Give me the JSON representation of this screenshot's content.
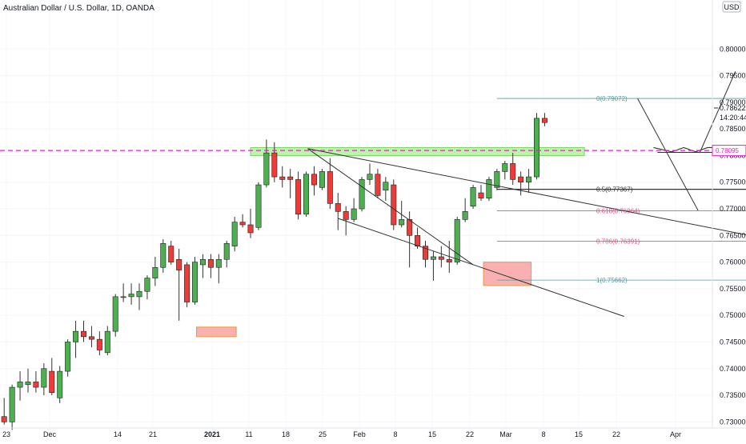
{
  "chart_data": {
    "type": "candlestick",
    "title": "Australian Dollar / U.S. Dollar, 1D, OANDA",
    "currency": "USD",
    "ylim": [
      0.7293,
      0.8041
    ],
    "y_ticks": [
      "0.80000",
      "0.79500",
      "0.79000",
      "0.78500",
      "0.78000",
      "0.77500",
      "0.77000",
      "0.76500",
      "0.76000",
      "0.75500",
      "0.75000",
      "0.74500",
      "0.74000",
      "0.73500",
      "0.73000"
    ],
    "x_ticks": [
      "23",
      "Dec",
      "14",
      "21",
      "2021",
      "11",
      "18",
      "25",
      "Feb",
      "8",
      "15",
      "22",
      "Mar",
      "8",
      "15",
      "22",
      "Apr"
    ],
    "last_price": "0.78622",
    "countdown": "14:20:44",
    "cursor_price": "0.78095",
    "colors": {
      "up": "#4caf50",
      "down": "#ef3b37",
      "wick": "#333333",
      "zone_green": "#b9f6a8",
      "zone_red": "#f8b0b0",
      "dash": "#e91ecb"
    },
    "candles": [
      {
        "o": 0.731,
        "h": 0.7345,
        "l": 0.7295,
        "c": 0.73
      },
      {
        "o": 0.73,
        "h": 0.737,
        "l": 0.7285,
        "c": 0.7365
      },
      {
        "o": 0.7365,
        "h": 0.7395,
        "l": 0.734,
        "c": 0.7375
      },
      {
        "o": 0.737,
        "h": 0.74,
        "l": 0.7355,
        "c": 0.7375
      },
      {
        "o": 0.7375,
        "h": 0.7395,
        "l": 0.7355,
        "c": 0.7365
      },
      {
        "o": 0.7365,
        "h": 0.741,
        "l": 0.735,
        "c": 0.74
      },
      {
        "o": 0.7395,
        "h": 0.742,
        "l": 0.735,
        "c": 0.7355
      },
      {
        "o": 0.7345,
        "h": 0.7405,
        "l": 0.7335,
        "c": 0.7395
      },
      {
        "o": 0.7395,
        "h": 0.7455,
        "l": 0.7385,
        "c": 0.745
      },
      {
        "o": 0.745,
        "h": 0.749,
        "l": 0.742,
        "c": 0.747
      },
      {
        "o": 0.747,
        "h": 0.749,
        "l": 0.745,
        "c": 0.746
      },
      {
        "o": 0.746,
        "h": 0.748,
        "l": 0.744,
        "c": 0.7455
      },
      {
        "o": 0.7455,
        "h": 0.747,
        "l": 0.7425,
        "c": 0.7435
      },
      {
        "o": 0.743,
        "h": 0.748,
        "l": 0.7425,
        "c": 0.747
      },
      {
        "o": 0.747,
        "h": 0.754,
        "l": 0.746,
        "c": 0.7535
      },
      {
        "o": 0.7535,
        "h": 0.756,
        "l": 0.7525,
        "c": 0.7535
      },
      {
        "o": 0.7535,
        "h": 0.756,
        "l": 0.752,
        "c": 0.754
      },
      {
        "o": 0.7535,
        "h": 0.756,
        "l": 0.751,
        "c": 0.7545
      },
      {
        "o": 0.7545,
        "h": 0.7575,
        "l": 0.753,
        "c": 0.757
      },
      {
        "o": 0.757,
        "h": 0.761,
        "l": 0.7555,
        "c": 0.759
      },
      {
        "o": 0.759,
        "h": 0.7643,
        "l": 0.758,
        "c": 0.7635
      },
      {
        "o": 0.763,
        "h": 0.764,
        "l": 0.7595,
        "c": 0.76
      },
      {
        "o": 0.7605,
        "h": 0.7625,
        "l": 0.749,
        "c": 0.7585
      },
      {
        "o": 0.7595,
        "h": 0.76,
        "l": 0.7515,
        "c": 0.7525
      },
      {
        "o": 0.7525,
        "h": 0.761,
        "l": 0.752,
        "c": 0.76
      },
      {
        "o": 0.7595,
        "h": 0.7615,
        "l": 0.757,
        "c": 0.7605
      },
      {
        "o": 0.7605,
        "h": 0.7615,
        "l": 0.757,
        "c": 0.759
      },
      {
        "o": 0.759,
        "h": 0.7615,
        "l": 0.756,
        "c": 0.7605
      },
      {
        "o": 0.7605,
        "h": 0.764,
        "l": 0.759,
        "c": 0.7635
      },
      {
        "o": 0.763,
        "h": 0.7685,
        "l": 0.762,
        "c": 0.7675
      },
      {
        "o": 0.7675,
        "h": 0.769,
        "l": 0.7665,
        "c": 0.767
      },
      {
        "o": 0.767,
        "h": 0.77,
        "l": 0.7645,
        "c": 0.7655
      },
      {
        "o": 0.7665,
        "h": 0.775,
        "l": 0.766,
        "c": 0.7745
      },
      {
        "o": 0.7745,
        "h": 0.783,
        "l": 0.774,
        "c": 0.7805
      },
      {
        "o": 0.7805,
        "h": 0.7825,
        "l": 0.775,
        "c": 0.776
      },
      {
        "o": 0.776,
        "h": 0.778,
        "l": 0.774,
        "c": 0.7755
      },
      {
        "o": 0.776,
        "h": 0.7775,
        "l": 0.772,
        "c": 0.7755
      },
      {
        "o": 0.7755,
        "h": 0.777,
        "l": 0.768,
        "c": 0.769
      },
      {
        "o": 0.769,
        "h": 0.777,
        "l": 0.7685,
        "c": 0.7765
      },
      {
        "o": 0.7765,
        "h": 0.778,
        "l": 0.7725,
        "c": 0.7745
      },
      {
        "o": 0.774,
        "h": 0.7775,
        "l": 0.7735,
        "c": 0.777
      },
      {
        "o": 0.777,
        "h": 0.7795,
        "l": 0.77,
        "c": 0.771
      },
      {
        "o": 0.771,
        "h": 0.773,
        "l": 0.766,
        "c": 0.7695
      },
      {
        "o": 0.7695,
        "h": 0.7705,
        "l": 0.765,
        "c": 0.768
      },
      {
        "o": 0.768,
        "h": 0.772,
        "l": 0.7675,
        "c": 0.77
      },
      {
        "o": 0.77,
        "h": 0.776,
        "l": 0.7695,
        "c": 0.7755
      },
      {
        "o": 0.7755,
        "h": 0.7785,
        "l": 0.7745,
        "c": 0.7765
      },
      {
        "o": 0.7765,
        "h": 0.7775,
        "l": 0.772,
        "c": 0.7725
      },
      {
        "o": 0.7735,
        "h": 0.776,
        "l": 0.7715,
        "c": 0.775
      },
      {
        "o": 0.7745,
        "h": 0.7755,
        "l": 0.766,
        "c": 0.767
      },
      {
        "o": 0.767,
        "h": 0.7715,
        "l": 0.7665,
        "c": 0.768
      },
      {
        "o": 0.768,
        "h": 0.7695,
        "l": 0.759,
        "c": 0.765
      },
      {
        "o": 0.765,
        "h": 0.7665,
        "l": 0.7625,
        "c": 0.763
      },
      {
        "o": 0.763,
        "h": 0.764,
        "l": 0.759,
        "c": 0.7605
      },
      {
        "o": 0.7605,
        "h": 0.762,
        "l": 0.7565,
        "c": 0.761
      },
      {
        "o": 0.761,
        "h": 0.763,
        "l": 0.759,
        "c": 0.7605
      },
      {
        "o": 0.7605,
        "h": 0.764,
        "l": 0.758,
        "c": 0.76
      },
      {
        "o": 0.76,
        "h": 0.7685,
        "l": 0.7595,
        "c": 0.768
      },
      {
        "o": 0.768,
        "h": 0.772,
        "l": 0.7675,
        "c": 0.7695
      },
      {
        "o": 0.7705,
        "h": 0.7745,
        "l": 0.77,
        "c": 0.774
      },
      {
        "o": 0.773,
        "h": 0.7745,
        "l": 0.7715,
        "c": 0.772
      },
      {
        "o": 0.772,
        "h": 0.776,
        "l": 0.7715,
        "c": 0.7755
      },
      {
        "o": 0.774,
        "h": 0.7775,
        "l": 0.7735,
        "c": 0.777
      },
      {
        "o": 0.777,
        "h": 0.779,
        "l": 0.7755,
        "c": 0.7785
      },
      {
        "o": 0.7785,
        "h": 0.7805,
        "l": 0.7745,
        "c": 0.7755
      },
      {
        "o": 0.776,
        "h": 0.777,
        "l": 0.7725,
        "c": 0.775
      },
      {
        "o": 0.775,
        "h": 0.7775,
        "l": 0.773,
        "c": 0.776
      },
      {
        "o": 0.776,
        "h": 0.788,
        "l": 0.7755,
        "c": 0.787
      },
      {
        "o": 0.787,
        "h": 0.788,
        "l": 0.7855,
        "c": 0.7862
      }
    ],
    "zones": [
      {
        "name": "resistance-zone-green",
        "color": "green",
        "x0": 31,
        "x1": 73,
        "y0": 0.78,
        "y1": 0.7815
      },
      {
        "name": "demand-zone-red-1",
        "color": "red",
        "x0": 24.2,
        "x1": 29.2,
        "y0": 0.746,
        "y1": 0.7478
      },
      {
        "name": "demand-zone-red-2",
        "color": "red",
        "x0": 60.3,
        "x1": 66.3,
        "y0": 0.7556,
        "y1": 0.76
      }
    ],
    "fib_levels": [
      {
        "label": "0(0.79072)",
        "value": 0.79072,
        "color": "#5b9aa0",
        "x0": 62,
        "x1": 106
      },
      {
        "label": "0.5(0.77367)",
        "value": 0.77367,
        "color": "#333333",
        "x0": 62,
        "x1": 106
      },
      {
        "label": "0.618(0.76964)",
        "value": 0.76964,
        "color": "#e8508a",
        "x0": 62,
        "x1": 106
      },
      {
        "label": "0.786(0.76391)",
        "value": 0.76391,
        "color": "#e8508a",
        "x0": 62,
        "x1": 106
      },
      {
        "label": "1(0.75662)",
        "value": 0.75662,
        "color": "#5b9aa0",
        "x0": 62,
        "x1": 106
      }
    ],
    "trendlines": [
      {
        "name": "upper-channel-line",
        "x0": 38.2,
        "y0": 0.7813,
        "x1": 104,
        "y1": 0.762
      },
      {
        "name": "lower-channel-line",
        "x0": 42,
        "y0": 0.7682,
        "x1": 78,
        "y1": 0.7498
      },
      {
        "name": "bounce-line",
        "x0": 38.2,
        "y0": 0.7813,
        "x1": 59,
        "y1": 0.7595
      },
      {
        "name": "projection-up-line",
        "x0": 87.5,
        "y0": 0.7805,
        "x1": 92,
        "y1": 0.7958
      },
      {
        "name": "projection-down-line",
        "x0": 79.7,
        "y0": 0.7907,
        "x1": 87.3,
        "y1": 0.7697
      }
    ],
    "zigzag": [
      [
        81.7,
        0.7815
      ],
      [
        84,
        0.7807
      ],
      [
        85.5,
        0.7815
      ],
      [
        87,
        0.7807
      ],
      [
        88.5,
        0.7815
      ],
      [
        89.5,
        0.7815
      ]
    ],
    "zigzag_base": [
      [
        82.2,
        0.7806
      ],
      [
        91.3,
        0.7806
      ]
    ]
  }
}
